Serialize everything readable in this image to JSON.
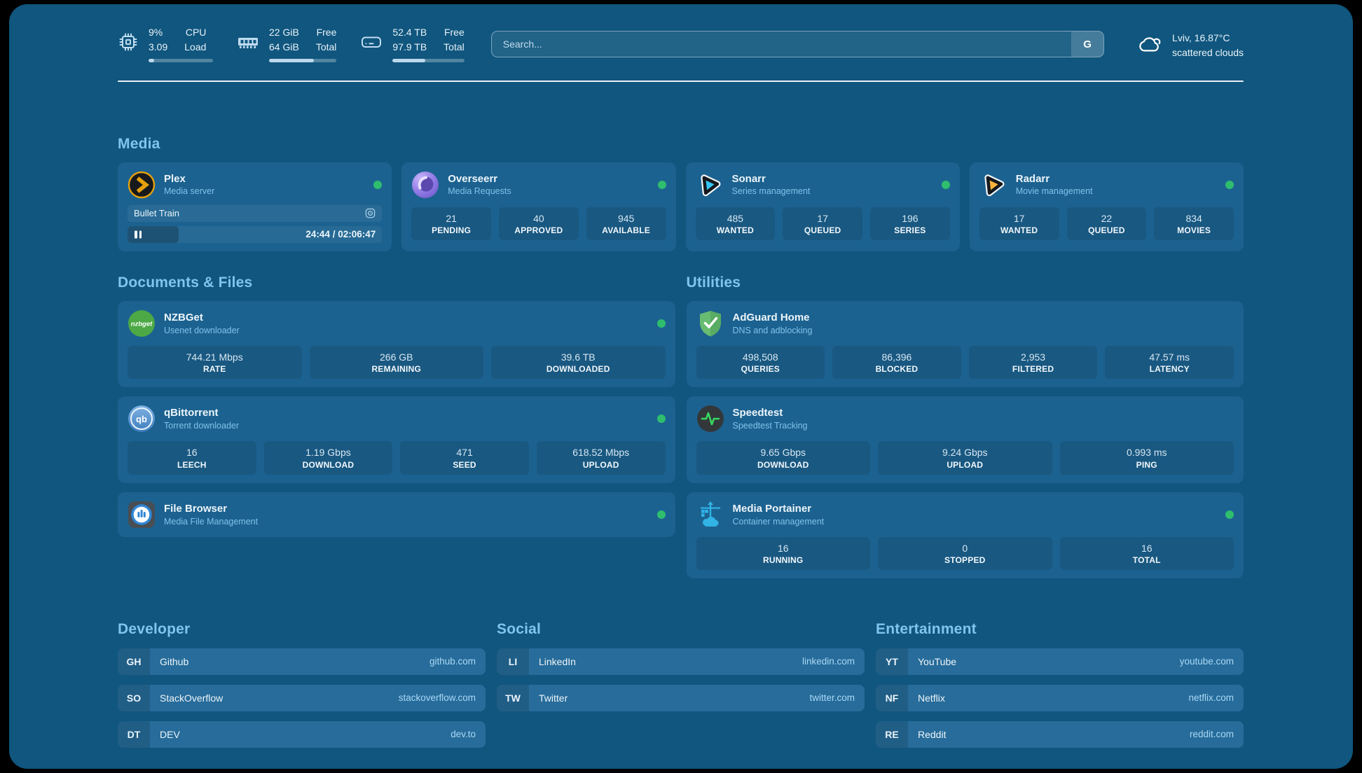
{
  "colors": {
    "page_background": "#10567E",
    "card_background": "#1C6290",
    "accent_text": "#7EC6F0",
    "status_online": "#2EBE6E"
  },
  "header": {
    "system_stats": [
      {
        "id": "cpu",
        "icon": "cpu-icon",
        "col1": [
          "9%",
          "3.09"
        ],
        "col2": [
          "CPU",
          "Load"
        ],
        "progress": 9
      },
      {
        "id": "memory",
        "icon": "memory-icon",
        "col1": [
          "22 GiB",
          "64 GiB"
        ],
        "col2": [
          "Free",
          "Total"
        ],
        "progress": 66
      },
      {
        "id": "disk",
        "icon": "disk-icon",
        "col1": [
          "52.4 TB",
          "97.9 TB"
        ],
        "col2": [
          "Free",
          "Total"
        ],
        "progress": 46
      }
    ],
    "search": {
      "placeholder": "Search...",
      "button_label": "G"
    },
    "weather": {
      "icon": "cloud-icon",
      "location": "Lviv, 16.87°C",
      "condition": "scattered clouds"
    }
  },
  "sections": {
    "media": {
      "title": "Media",
      "apps": [
        {
          "id": "plex",
          "name": "Plex",
          "subtitle": "Media server",
          "icon": "plex-icon",
          "online": true,
          "now_playing": {
            "title": "Bullet Train",
            "state": "paused",
            "position": "24:44",
            "duration": "02:06:47",
            "progress_percent": 20
          }
        },
        {
          "id": "overseerr",
          "name": "Overseerr",
          "subtitle": "Media Requests",
          "icon": "overseerr-icon",
          "online": true,
          "stats": [
            {
              "value": "21",
              "label": "PENDING"
            },
            {
              "value": "40",
              "label": "APPROVED"
            },
            {
              "value": "945",
              "label": "AVAILABLE"
            }
          ]
        },
        {
          "id": "sonarr",
          "name": "Sonarr",
          "subtitle": "Series management",
          "icon": "sonarr-icon",
          "online": true,
          "stats": [
            {
              "value": "485",
              "label": "WANTED"
            },
            {
              "value": "17",
              "label": "QUEUED"
            },
            {
              "value": "196",
              "label": "SERIES"
            }
          ]
        },
        {
          "id": "radarr",
          "name": "Radarr",
          "subtitle": "Movie management",
          "icon": "radarr-icon",
          "online": true,
          "stats": [
            {
              "value": "17",
              "label": "WANTED"
            },
            {
              "value": "22",
              "label": "QUEUED"
            },
            {
              "value": "834",
              "label": "MOVIES"
            }
          ]
        }
      ]
    },
    "documents": {
      "title": "Documents & Files",
      "apps": [
        {
          "id": "nzbget",
          "name": "NZBGet",
          "subtitle": "Usenet downloader",
          "icon": "nzbget-icon",
          "online": true,
          "stats": [
            {
              "value": "744.21 Mbps",
              "label": "RATE"
            },
            {
              "value": "266 GB",
              "label": "REMAINING"
            },
            {
              "value": "39.6 TB",
              "label": "DOWNLOADED"
            }
          ]
        },
        {
          "id": "qbittorrent",
          "name": "qBittorrent",
          "subtitle": "Torrent downloader",
          "icon": "qbittorrent-icon",
          "online": true,
          "stats": [
            {
              "value": "16",
              "label": "LEECH"
            },
            {
              "value": "1.19 Gbps",
              "label": "DOWNLOAD"
            },
            {
              "value": "471",
              "label": "SEED"
            },
            {
              "value": "618.52 Mbps",
              "label": "UPLOAD"
            }
          ]
        },
        {
          "id": "filebrowser",
          "name": "File Browser",
          "subtitle": "Media File Management",
          "icon": "filebrowser-icon",
          "online": true,
          "stats": []
        }
      ]
    },
    "utilities": {
      "title": "Utilities",
      "apps": [
        {
          "id": "adguard",
          "name": "AdGuard Home",
          "subtitle": "DNS and adblocking",
          "icon": "adguard-icon",
          "online": false,
          "stats": [
            {
              "value": "498,508",
              "label": "QUERIES"
            },
            {
              "value": "86,396",
              "label": "BLOCKED"
            },
            {
              "value": "2,953",
              "label": "FILTERED"
            },
            {
              "value": "47.57 ms",
              "label": "LATENCY"
            }
          ]
        },
        {
          "id": "speedtest",
          "name": "Speedtest",
          "subtitle": "Speedtest Tracking",
          "icon": "speedtest-icon",
          "online": false,
          "stats": [
            {
              "value": "9.65 Gbps",
              "label": "DOWNLOAD"
            },
            {
              "value": "9.24 Gbps",
              "label": "UPLOAD"
            },
            {
              "value": "0.993 ms",
              "label": "PING"
            }
          ]
        },
        {
          "id": "portainer",
          "name": "Media Portainer",
          "subtitle": "Container management",
          "icon": "portainer-icon",
          "online": true,
          "stats": [
            {
              "value": "16",
              "label": "RUNNING"
            },
            {
              "value": "0",
              "label": "STOPPED"
            },
            {
              "value": "16",
              "label": "TOTAL"
            }
          ]
        }
      ]
    }
  },
  "bookmarks": [
    {
      "title": "Developer",
      "links": [
        {
          "abbr": "GH",
          "name": "Github",
          "url": "github.com"
        },
        {
          "abbr": "SO",
          "name": "StackOverflow",
          "url": "stackoverflow.com"
        },
        {
          "abbr": "DT",
          "name": "DEV",
          "url": "dev.to"
        }
      ]
    },
    {
      "title": "Social",
      "links": [
        {
          "abbr": "LI",
          "name": "LinkedIn",
          "url": "linkedin.com"
        },
        {
          "abbr": "TW",
          "name": "Twitter",
          "url": "twitter.com"
        }
      ]
    },
    {
      "title": "Entertainment",
      "links": [
        {
          "abbr": "YT",
          "name": "YouTube",
          "url": "youtube.com"
        },
        {
          "abbr": "NF",
          "name": "Netflix",
          "url": "netflix.com"
        },
        {
          "abbr": "RE",
          "name": "Reddit",
          "url": "reddit.com"
        }
      ]
    }
  ]
}
